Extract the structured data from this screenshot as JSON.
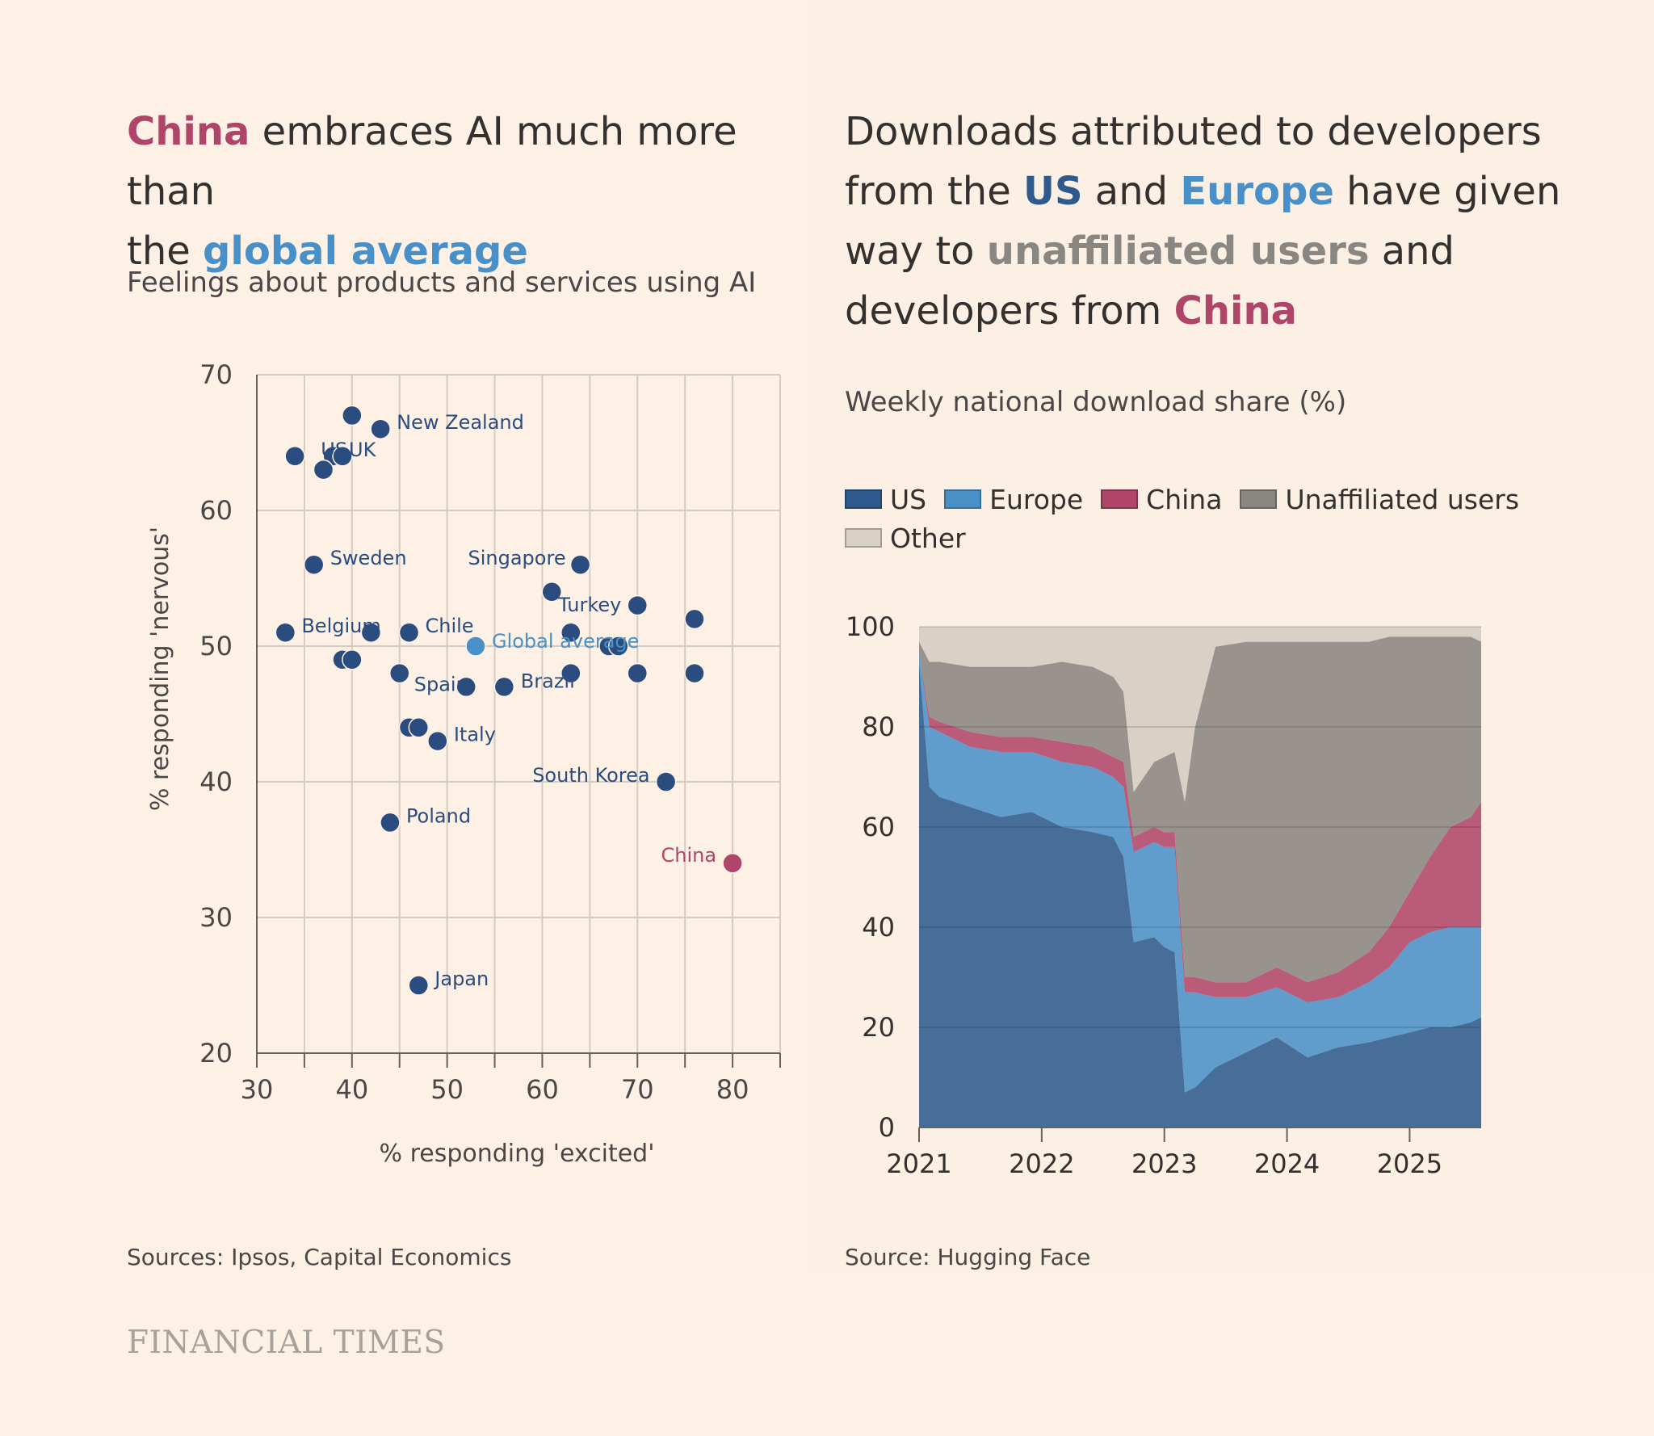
{
  "left": {
    "title_highlight1": "China",
    "title_mid": " embraces AI much more than",
    "title_line2_pre": "the ",
    "title_highlight2": "global average",
    "subtitle": "Feelings about products and services using AI",
    "source": "Sources: Ipsos, Capital Economics"
  },
  "right": {
    "title_l1": "Downloads attributed to developers",
    "title_l2_pre": "from the ",
    "title_l2_us": "US",
    "title_l2_and": " and ",
    "title_l2_eu": "Europe",
    "title_l2_post": " have given",
    "title_l3_pre": "way to ",
    "title_l3_un": "unaffiliated users",
    "title_l3_post": " and",
    "title_l4_pre": "developers from ",
    "title_l4_cn": "China",
    "subtitle": "Weekly national download share (%)",
    "source": "Source: Hugging Face"
  },
  "colors": {
    "china": "#b0456a",
    "global": "#4a90c8",
    "us": "#2e5a8e",
    "europe": "#4a90c8",
    "unaffiliated": "#8a8681",
    "other": "#d9d0c6",
    "dot": "#2b4c7e"
  },
  "footer": {
    "brand": "FINANCIAL TIMES"
  },
  "chart_data": [
    {
      "type": "scatter",
      "title": "",
      "xlabel": "% responding 'excited'",
      "ylabel": "% responding 'nervous'",
      "xlim": [
        30,
        85
      ],
      "ylim": [
        20,
        70
      ],
      "xticks": [
        "30",
        "40",
        "50",
        "60",
        "70",
        "80"
      ],
      "yticks": [
        "20",
        "30",
        "40",
        "50",
        "60",
        "70"
      ],
      "grid": true,
      "points": [
        {
          "x": 40,
          "y": 67,
          "label": ""
        },
        {
          "x": 43,
          "y": 66,
          "label": "New Zealand"
        },
        {
          "x": 34,
          "y": 64,
          "label": ""
        },
        {
          "x": 38,
          "y": 64,
          "label": "US"
        },
        {
          "x": 39,
          "y": 64,
          "label": "UK"
        },
        {
          "x": 37,
          "y": 63,
          "label": ""
        },
        {
          "x": 36,
          "y": 56,
          "label": "Sweden"
        },
        {
          "x": 64,
          "y": 56,
          "label": "Singapore"
        },
        {
          "x": 61,
          "y": 54,
          "label": "Turkey"
        },
        {
          "x": 70,
          "y": 53,
          "label": ""
        },
        {
          "x": 76,
          "y": 52,
          "label": ""
        },
        {
          "x": 33,
          "y": 51,
          "label": "Belgium"
        },
        {
          "x": 42,
          "y": 51,
          "label": ""
        },
        {
          "x": 46,
          "y": 51,
          "label": "Chile"
        },
        {
          "x": 63,
          "y": 51,
          "label": ""
        },
        {
          "x": 67,
          "y": 50,
          "label": ""
        },
        {
          "x": 68,
          "y": 50,
          "label": ""
        },
        {
          "x": 53,
          "y": 50,
          "label": "Global average",
          "highlight": "global"
        },
        {
          "x": 39,
          "y": 49,
          "label": ""
        },
        {
          "x": 40,
          "y": 49,
          "label": ""
        },
        {
          "x": 45,
          "y": 48,
          "label": "Spain"
        },
        {
          "x": 63,
          "y": 48,
          "label": "Brazil"
        },
        {
          "x": 70,
          "y": 48,
          "label": ""
        },
        {
          "x": 76,
          "y": 48,
          "label": ""
        },
        {
          "x": 52,
          "y": 47,
          "label": ""
        },
        {
          "x": 56,
          "y": 47,
          "label": ""
        },
        {
          "x": 46,
          "y": 44,
          "label": ""
        },
        {
          "x": 47,
          "y": 44,
          "label": ""
        },
        {
          "x": 49,
          "y": 43,
          "label": "Italy"
        },
        {
          "x": 73,
          "y": 40,
          "label": "South Korea"
        },
        {
          "x": 44,
          "y": 37,
          "label": "Poland"
        },
        {
          "x": 80,
          "y": 34,
          "label": "China",
          "highlight": "china"
        },
        {
          "x": 47,
          "y": 25,
          "label": "Japan"
        }
      ]
    },
    {
      "type": "area",
      "stacked": true,
      "title": "",
      "ylim": [
        0,
        100
      ],
      "yticks": [
        "0",
        "20",
        "40",
        "60",
        "80",
        "100"
      ],
      "xticks": [
        "2021",
        "2022",
        "2023",
        "2024",
        "2025"
      ],
      "xlim": [
        "2021-01",
        "2025-08"
      ],
      "grid": true,
      "x": [
        "2021-01",
        "2021-02",
        "2021-03",
        "2021-06",
        "2021-09",
        "2021-12",
        "2022-03",
        "2022-06",
        "2022-08",
        "2022-09",
        "2022-10",
        "2022-12",
        "2023-01",
        "2023-02",
        "2023-03",
        "2023-04",
        "2023-06",
        "2023-09",
        "2023-12",
        "2024-03",
        "2024-06",
        "2024-09",
        "2024-11",
        "2025-01",
        "2025-03",
        "2025-05",
        "2025-07",
        "2025-08"
      ],
      "series": [
        {
          "name": "US",
          "values": [
            93,
            68,
            66,
            64,
            62,
            63,
            60,
            59,
            58,
            54,
            37,
            38,
            36,
            35,
            7,
            8,
            12,
            15,
            18,
            14,
            16,
            17,
            18,
            19,
            20,
            20,
            21,
            22
          ]
        },
        {
          "name": "Europe",
          "values": [
            2,
            12,
            13,
            12,
            13,
            12,
            13,
            13,
            12,
            14,
            18,
            19,
            20,
            21,
            20,
            19,
            14,
            11,
            10,
            11,
            10,
            12,
            14,
            18,
            19,
            20,
            19,
            18
          ]
        },
        {
          "name": "China",
          "values": [
            0,
            2,
            2,
            3,
            3,
            3,
            4,
            4,
            4,
            5,
            3,
            3,
            3,
            3,
            3,
            3,
            3,
            3,
            4,
            4,
            5,
            6,
            8,
            10,
            15,
            20,
            22,
            25
          ]
        },
        {
          "name": "Unaffiliated users",
          "values": [
            2,
            11,
            12,
            13,
            14,
            14,
            16,
            16,
            16,
            14,
            9,
            13,
            15,
            16,
            35,
            50,
            67,
            68,
            65,
            68,
            66,
            62,
            58,
            51,
            44,
            38,
            36,
            32
          ]
        },
        {
          "name": "Other",
          "values": [
            3,
            7,
            7,
            8,
            8,
            8,
            7,
            8,
            10,
            13,
            33,
            27,
            26,
            25,
            35,
            20,
            4,
            3,
            3,
            3,
            3,
            3,
            2,
            2,
            2,
            2,
            2,
            3
          ]
        }
      ]
    }
  ]
}
